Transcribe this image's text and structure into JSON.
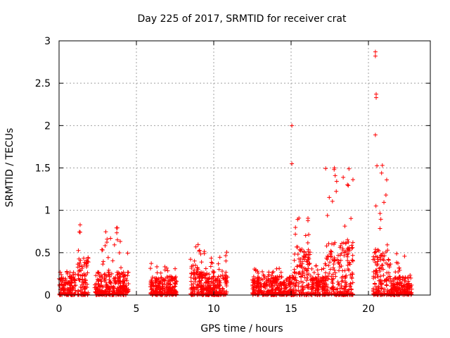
{
  "chart_data": {
    "type": "scatter",
    "title": "Day 225 of 2017, SRMTID for receiver crat",
    "xlabel": "GPS time / hours",
    "ylabel": "SRMTID / TECUs",
    "xlim": [
      0,
      24
    ],
    "ylim": [
      0,
      3
    ],
    "xticks": [
      0,
      5,
      10,
      15,
      20
    ],
    "yticks": [
      0,
      0.5,
      1,
      1.5,
      2,
      2.5,
      3
    ],
    "xtick_labels": [
      "0",
      "5",
      "10",
      "15",
      "20"
    ],
    "ytick_labels": [
      "0",
      "0.5",
      "1",
      "1.5",
      "2",
      "2.5",
      "3"
    ],
    "grid": true,
    "marker": "plus",
    "color": "#ff0000",
    "clusters": [
      {
        "x_start": 0.0,
        "x_end": 1.1,
        "typical": 0.12,
        "peak": 0.28
      },
      {
        "x_start": 1.2,
        "x_end": 1.9,
        "typical": 0.25,
        "peak": 0.83
      },
      {
        "x_start": 2.3,
        "x_end": 4.5,
        "typical": 0.15,
        "peak": 0.8
      },
      {
        "x_start": 5.9,
        "x_end": 7.6,
        "typical": 0.12,
        "peak": 0.38
      },
      {
        "x_start": 8.5,
        "x_end": 9.0,
        "typical": 0.2,
        "peak": 0.62
      },
      {
        "x_start": 9.0,
        "x_end": 10.9,
        "typical": 0.15,
        "peak": 0.55
      },
      {
        "x_start": 12.5,
        "x_end": 15.2,
        "typical": 0.12,
        "peak": 0.32
      },
      {
        "x_start": 15.2,
        "x_end": 16.3,
        "typical": 0.3,
        "peak": 0.95
      },
      {
        "x_start": 16.3,
        "x_end": 17.2,
        "typical": 0.12,
        "peak": 0.35
      },
      {
        "x_start": 17.2,
        "x_end": 19.0,
        "typical": 0.35,
        "peak": 1.5
      },
      {
        "x_start": 20.3,
        "x_end": 21.4,
        "typical": 0.3,
        "peak": 1.55
      },
      {
        "x_start": 21.4,
        "x_end": 22.8,
        "typical": 0.12,
        "peak": 0.5
      }
    ],
    "outliers": [
      {
        "x": 15.05,
        "y": 2.0
      },
      {
        "x": 15.05,
        "y": 1.55
      },
      {
        "x": 20.45,
        "y": 2.87
      },
      {
        "x": 20.45,
        "y": 2.82
      },
      {
        "x": 20.5,
        "y": 2.37
      },
      {
        "x": 20.5,
        "y": 2.33
      },
      {
        "x": 20.45,
        "y": 1.89
      },
      {
        "x": 20.9,
        "y": 1.53
      },
      {
        "x": 20.85,
        "y": 1.44
      },
      {
        "x": 17.8,
        "y": 1.5
      },
      {
        "x": 17.85,
        "y": 1.41
      }
    ]
  }
}
